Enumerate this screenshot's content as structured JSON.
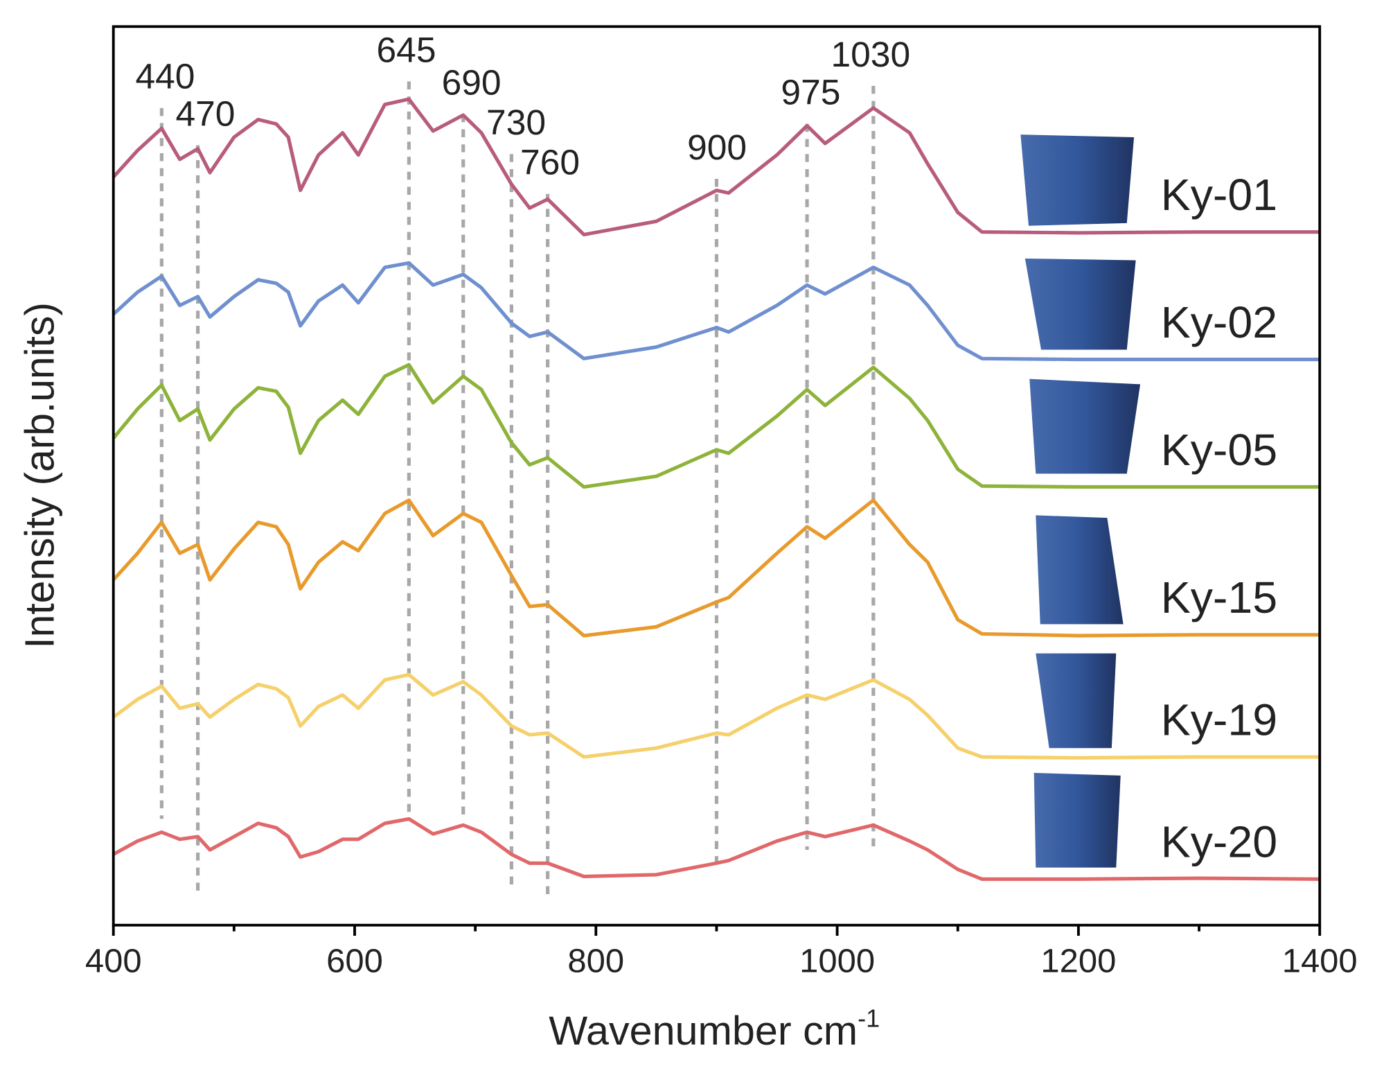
{
  "chart_data": {
    "type": "line",
    "ylabel": "Intensity (arb.units)",
    "xlabel": "Wavenumber cm",
    "xlabel_sup": "-1",
    "xlim": [
      400,
      1400
    ],
    "ylim": [
      0,
      1015
    ],
    "xticks": [
      400,
      600,
      800,
      1000,
      1200,
      1400
    ],
    "xminorticks": [
      500,
      700,
      900,
      1100,
      1300
    ],
    "peak_labels": [
      440,
      470,
      645,
      690,
      730,
      760,
      900,
      975,
      1030
    ],
    "x": [
      400,
      420,
      440,
      455,
      470,
      480,
      500,
      520,
      535,
      545,
      555,
      570,
      590,
      603,
      625,
      645,
      665,
      690,
      705,
      730,
      745,
      760,
      790,
      850,
      900,
      910,
      950,
      975,
      990,
      1030,
      1060,
      1075,
      1100,
      1120,
      1200,
      1300,
      1400
    ],
    "series": [
      {
        "name": "Ky-01",
        "color": "#b85c7e",
        "values": [
          845,
          875,
          900,
          865,
          877,
          850,
          890,
          910,
          905,
          890,
          830,
          870,
          895,
          870,
          927,
          933,
          897,
          915,
          895,
          837,
          810,
          820,
          780,
          795,
          830,
          827,
          870,
          903,
          883,
          923,
          895,
          860,
          805,
          783,
          782,
          783,
          783
        ]
      },
      {
        "name": "Ky-02",
        "color": "#6f8fcf",
        "values": [
          690,
          715,
          733,
          700,
          710,
          687,
          710,
          729,
          725,
          715,
          677,
          705,
          723,
          703,
          743,
          748,
          723,
          735,
          720,
          680,
          665,
          670,
          640,
          653,
          675,
          670,
          700,
          723,
          713,
          743,
          723,
          700,
          655,
          640,
          639,
          639,
          639
        ]
      },
      {
        "name": "Ky-05",
        "color": "#8db33a",
        "values": [
          550,
          583,
          610,
          570,
          583,
          548,
          583,
          607,
          603,
          585,
          533,
          570,
          593,
          577,
          620,
          633,
          590,
          620,
          605,
          545,
          520,
          528,
          495,
          507,
          537,
          533,
          575,
          605,
          587,
          630,
          595,
          570,
          515,
          496,
          495,
          495,
          495
        ]
      },
      {
        "name": "Ky-15",
        "color": "#e89a2c",
        "values": [
          390,
          420,
          455,
          420,
          430,
          390,
          425,
          455,
          450,
          430,
          380,
          410,
          433,
          423,
          465,
          480,
          440,
          465,
          455,
          395,
          360,
          362,
          327,
          337,
          365,
          370,
          420,
          450,
          437,
          480,
          430,
          410,
          345,
          329,
          327,
          328,
          328
        ]
      },
      {
        "name": "Ky-19",
        "color": "#f5d06b",
        "values": [
          235,
          255,
          270,
          245,
          250,
          235,
          255,
          272,
          267,
          257,
          225,
          247,
          260,
          245,
          277,
          283,
          260,
          275,
          260,
          225,
          215,
          217,
          190,
          200,
          217,
          215,
          245,
          260,
          255,
          277,
          255,
          237,
          200,
          190,
          189,
          190,
          190
        ]
      },
      {
        "name": "Ky-20",
        "color": "#e0686a",
        "values": [
          80,
          95,
          105,
          97,
          100,
          85,
          100,
          115,
          110,
          100,
          77,
          83,
          97,
          97,
          115,
          120,
          103,
          113,
          105,
          80,
          70,
          70,
          55,
          57,
          70,
          73,
          95,
          105,
          100,
          113,
          95,
          85,
          63,
          52,
          52,
          53,
          52
        ]
      }
    ]
  }
}
